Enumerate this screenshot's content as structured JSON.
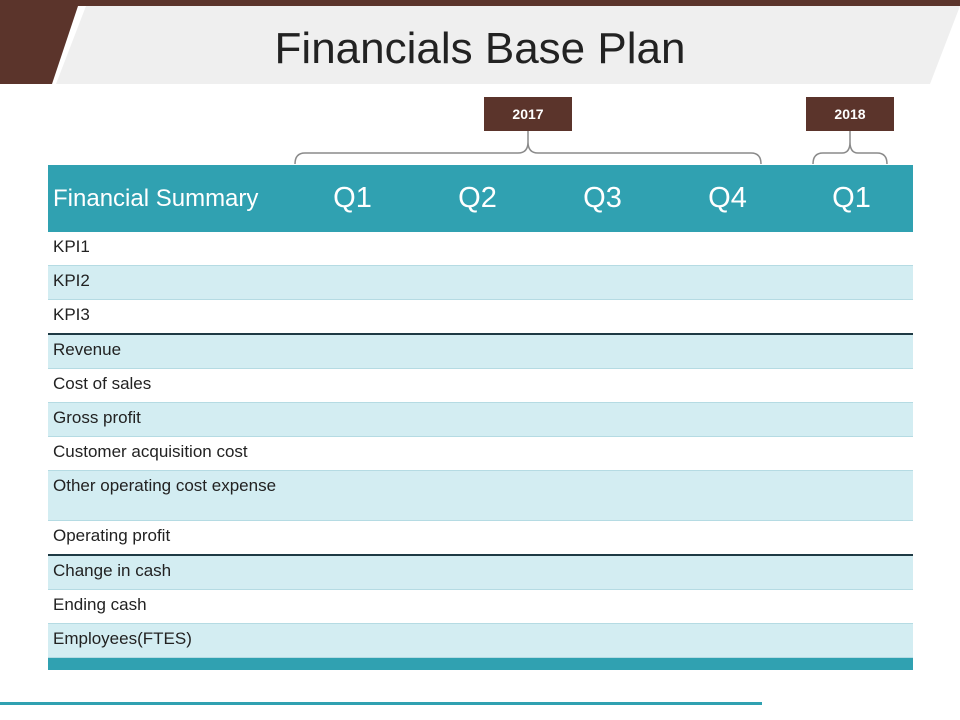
{
  "title": "Financials Base Plan",
  "years": [
    "2017",
    "2018"
  ],
  "header": {
    "label": "Financial Summary",
    "quarters": [
      "Q1",
      "Q2",
      "Q3",
      "Q4",
      "Q1"
    ]
  },
  "rows": [
    "KPI1",
    "KPI2",
    "KPI3",
    "Revenue",
    "Cost of sales",
    "Gross profit",
    "Customer acquisition cost",
    "Other operating cost expense",
    "Operating profit",
    "Change in cash",
    "Ending cash",
    "Employees(FTES)"
  ],
  "colors": {
    "accent_brown": "#5b342b",
    "header_teal": "#30a1b1",
    "row_alt": "#d3edf2"
  }
}
